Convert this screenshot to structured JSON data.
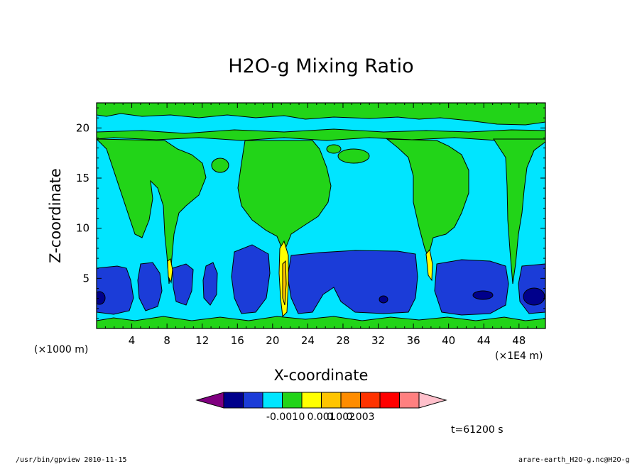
{
  "chart_data": {
    "type": "heatmap",
    "title": "H2O-g Mixing Ratio",
    "xlabel": "X-coordinate",
    "ylabel": "Z-coordinate",
    "x_unit_left": "(×1000 m)",
    "x_unit_right": "(×1E4 m)",
    "xlim": [
      0,
      51
    ],
    "ylim": [
      0,
      22.5
    ],
    "x_ticks": [
      "4",
      "8",
      "12",
      "16",
      "20",
      "24",
      "28",
      "32",
      "36",
      "40",
      "44",
      "48"
    ],
    "y_ticks": [
      "5",
      "10",
      "15",
      "20"
    ],
    "colorbar": {
      "colors": [
        "#800080",
        "#00008b",
        "#1b3cd8",
        "#00e5ff",
        "#22d418",
        "#ffff00",
        "#ffc400",
        "#ff8c00",
        "#ff3300",
        "#ff0000",
        "#ff8080",
        "#ffc0cb"
      ],
      "labels": [
        "-0.001",
        "0",
        "0.001",
        "0.002",
        "0.003"
      ]
    },
    "colors": {
      "background": "#00e5ff",
      "green": "#22d418",
      "blue": "#1b3cd8",
      "dark_blue": "#00008b",
      "yellow": "#ffff00",
      "orange": "#ffc400"
    },
    "time_label": "t=61200 s"
  },
  "footer": {
    "left": "/usr/bin/gpview  2010-11-15",
    "right": "arare-earth_H2O-g.nc@H2O-g"
  }
}
